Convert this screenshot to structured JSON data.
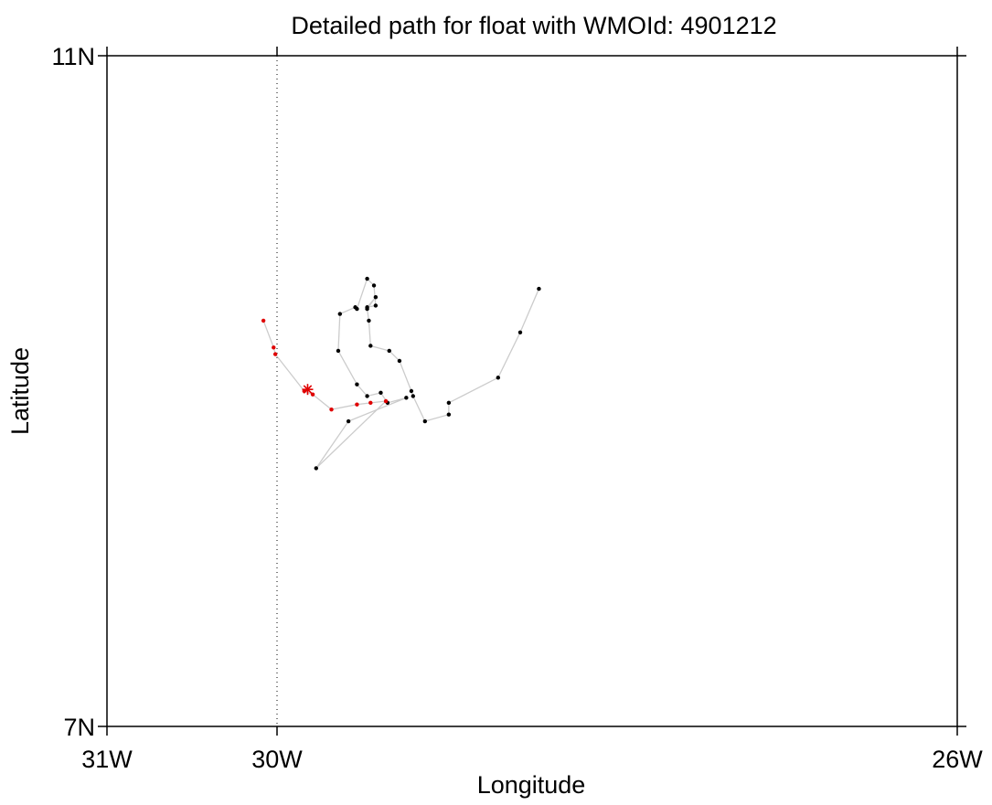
{
  "chart_data": {
    "type": "scatter",
    "title": "Detailed path for float with WMOId: 4901212",
    "xlabel": "Longitude",
    "ylabel": "Latitude",
    "xlim": [
      -31,
      -26
    ],
    "ylim": [
      7,
      11
    ],
    "x_ticks": [
      {
        "value": -31,
        "label": "31W"
      },
      {
        "value": -30,
        "label": "30W"
      },
      {
        "value": -26,
        "label": "26W"
      }
    ],
    "y_ticks": [
      {
        "value": 11,
        "label": "11N"
      },
      {
        "value": 7,
        "label": "7N"
      }
    ],
    "reference_line": {
      "axis": "x",
      "value": -30,
      "style": "dotted"
    },
    "grid": false,
    "legend": "none",
    "colors": {
      "path_line": "#cccccc",
      "older_points": "#000000",
      "recent_points": "#e00000",
      "latest_position": "#e00000"
    },
    "series": [
      {
        "values_note_free": true,
        "color": "#000000",
        "points": [
          [
            -28.46,
            9.61
          ],
          [
            -28.57,
            9.35
          ],
          [
            -28.7,
            9.08
          ],
          [
            -28.99,
            8.93
          ],
          [
            -28.99,
            8.86
          ],
          [
            -29.13,
            8.82
          ],
          [
            -29.2,
            8.97
          ],
          [
            -29.21,
            9.0
          ],
          [
            -29.28,
            9.18
          ],
          [
            -29.34,
            9.24
          ],
          [
            -29.45,
            9.27
          ],
          [
            -29.46,
            9.42
          ],
          [
            -29.47,
            9.49
          ],
          [
            -29.42,
            9.56
          ],
          [
            -29.47,
            9.5
          ],
          [
            -29.42,
            9.51
          ],
          [
            -29.43,
            9.63
          ],
          [
            -29.47,
            9.67
          ],
          [
            -29.53,
            9.49
          ],
          [
            -29.54,
            9.5
          ],
          [
            -29.63,
            9.46
          ],
          [
            -29.64,
            9.24
          ],
          [
            -29.53,
            9.04
          ],
          [
            -29.47,
            8.97
          ],
          [
            -29.39,
            8.99
          ],
          [
            -29.35,
            8.93
          ],
          [
            -29.24,
            8.96
          ],
          [
            -29.58,
            8.82
          ],
          [
            -29.77,
            8.54
          ]
        ]
      },
      {
        "color": "#e00000",
        "points": [
          [
            -29.36,
            8.94
          ],
          [
            -29.45,
            8.93
          ],
          [
            -29.53,
            8.92
          ],
          [
            -29.68,
            8.89
          ],
          [
            -29.79,
            8.98
          ],
          [
            -29.84,
            9.0
          ],
          [
            -30.01,
            9.22
          ],
          [
            -30.02,
            9.26
          ],
          [
            -30.08,
            9.42
          ]
        ]
      }
    ],
    "latest_position": {
      "x": -29.82,
      "y": 9.01,
      "marker": "asterisk"
    }
  }
}
